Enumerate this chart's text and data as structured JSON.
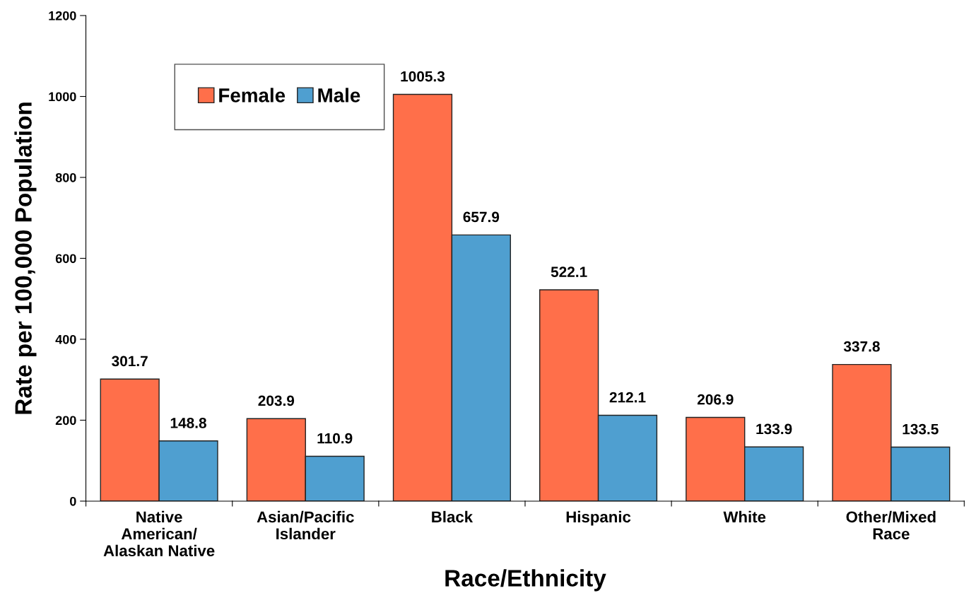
{
  "chart_data": {
    "type": "bar",
    "xlabel": "Race/Ethnicity",
    "ylabel": "Rate per 100,000 Population",
    "categories": [
      "Native\nAmerican/\nAlaskan Native",
      "Asian/Pacific\nIslander",
      "Black",
      "Hispanic",
      "White",
      "Other/Mixed\nRace"
    ],
    "series": [
      {
        "name": "Female",
        "color": "#ff6f4a",
        "values": [
          301.7,
          203.9,
          1005.3,
          522.1,
          206.9,
          337.8
        ]
      },
      {
        "name": "Male",
        "color": "#4f9fd0",
        "values": [
          148.8,
          110.9,
          657.9,
          212.1,
          133.9,
          133.5
        ]
      }
    ],
    "ylim": [
      0,
      1200
    ],
    "yticks": [
      0,
      200,
      400,
      600,
      800,
      1000,
      1200
    ],
    "data_labels": true,
    "legend": "top left",
    "grid": false
  }
}
